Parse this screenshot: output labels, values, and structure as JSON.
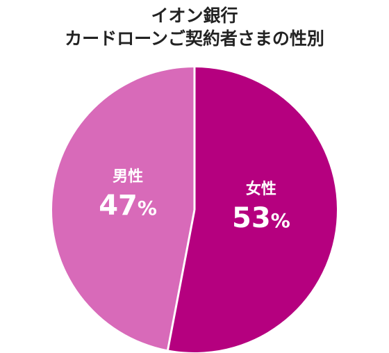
{
  "chart_data": {
    "type": "pie",
    "title": [
      "イオン銀行",
      "カードローンご契約者さまの性別"
    ],
    "slices": [
      {
        "label": "女性",
        "value": 53,
        "display": "53%",
        "color": "#b5007f"
      },
      {
        "label": "男性",
        "value": 47,
        "display": "47%",
        "color": "#d86ab9"
      }
    ],
    "start": "12 o'clock",
    "direction": "clockwise",
    "legend": "none",
    "separator_color": "#ffffff"
  }
}
